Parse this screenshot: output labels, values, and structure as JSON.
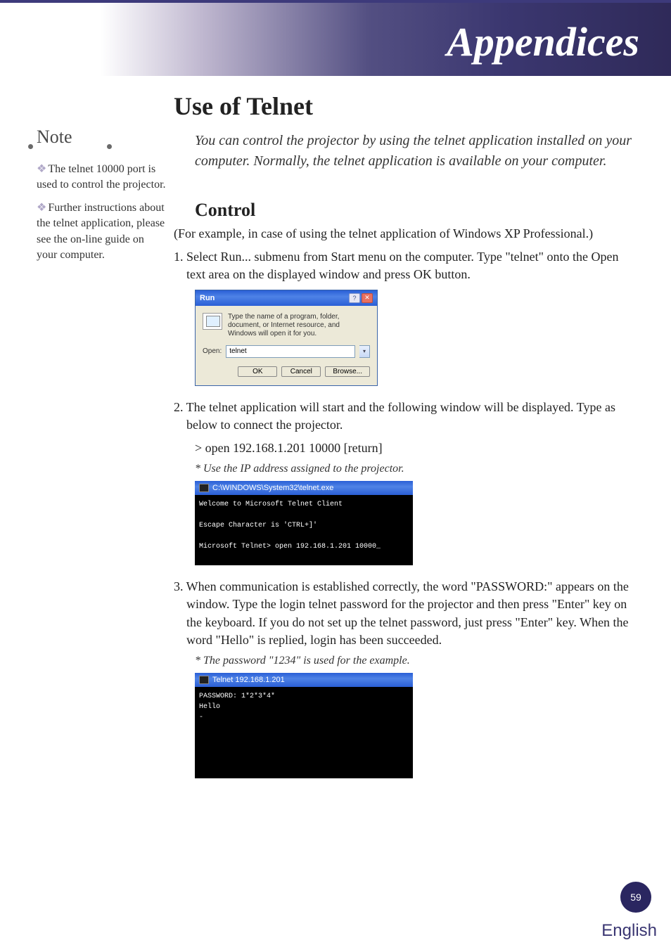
{
  "header": {
    "title": "Appendices"
  },
  "sidebar": {
    "note_label": "Note",
    "items": [
      "The telnet 10000 port is used to control the projector.",
      "Further instructions about the telnet application, please see the on-line guide on your computer."
    ]
  },
  "main": {
    "section_title": "Use of Telnet",
    "intro": "You can control the projector by using the telnet application installed on your computer. Normally, the telnet application is available on your computer.",
    "subsection_title": "Control",
    "context": "(For example, in case of using the telnet application of Windows XP Professional.)",
    "step1": "1. Select Run... submenu from Start menu on the computer. Type \"telnet\" onto the Open text area on the displayed window and press OK button.",
    "run_dialog": {
      "title": "Run",
      "help_btn": "?",
      "close_btn": "✕",
      "desc": "Type the name of a program, folder, document, or Internet resource, and Windows will open it for you.",
      "open_label": "Open:",
      "input_value": "telnet",
      "btn_ok": "OK",
      "btn_cancel": "Cancel",
      "btn_browse": "Browse..."
    },
    "step2": "2. The telnet application will start and the following window will be displayed. Type as below to connect the projector.",
    "step2_cmd": "> open 192.168.1.201 10000 [return]",
    "step2_note": "* Use the IP address assigned to the projector.",
    "cmd1": {
      "title": "C:\\WINDOWS\\System32\\telnet.exe",
      "body": "Welcome to Microsoft Telnet Client\n\nEscape Character is 'CTRL+]'\n\nMicrosoft Telnet> open 192.168.1.201 10000_"
    },
    "step3": "3. When communication is established correctly, the word \"PASSWORD:\" appears on the window. Type the login telnet password for the projector and then press \"Enter\" key on the keyboard. If you do not set up the telnet password, just press \"Enter\" key. When the word \"Hello\" is replied, login has been succeeded.",
    "step3_note": "* The password \"1234\" is used for the example.",
    "cmd2": {
      "title": "Telnet 192.168.1.201",
      "body": "PASSWORD: 1*2*3*4*\nHello\n-"
    }
  },
  "footer": {
    "page_number": "59",
    "language": "English"
  },
  "colors": {
    "header_accent": "#2f2a59",
    "page_circle": "#2a2660",
    "lang_color": "#3a3672"
  }
}
